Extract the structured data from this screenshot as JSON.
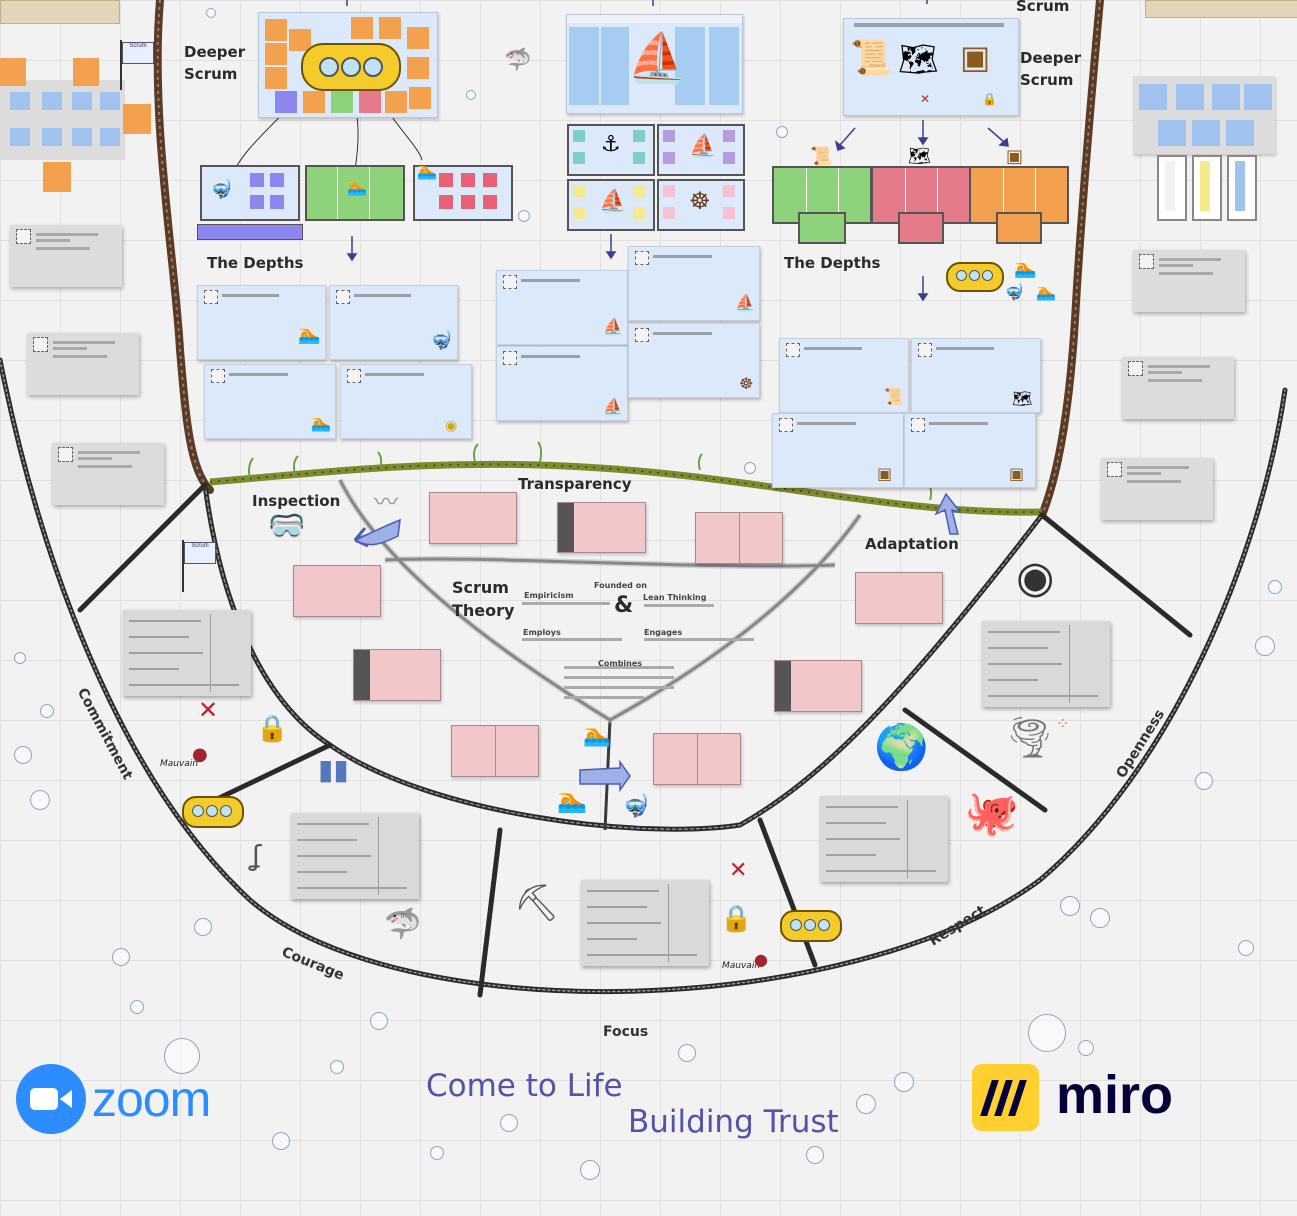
{
  "board": {
    "labels": {
      "deeper_scrum_left": "Deeper\nScrum",
      "deeper_scrum_right": "Deeper\nScrum",
      "scrum_top": "Scrum",
      "depths_left": "The Depths",
      "depths_right": "The Depths",
      "inspection": "Inspection",
      "transparency": "Transparency",
      "adaptation": "Adaptation",
      "scrum_theory": "Scrum\nTheory",
      "ampersand": "&",
      "founded_on": "Founded on",
      "empiricism": "Empiricism",
      "lean_thinking": "Lean Thinking",
      "employs": "Employs",
      "engages": "Engages",
      "combines": "Combines",
      "commitment": "Commitment",
      "courage": "Courage",
      "focus": "Focus",
      "respect": "Respect",
      "openness": "Openness",
      "signature": "Mauvain",
      "flag_text": "Scrum"
    },
    "colors": {
      "orange": "#f4a14f",
      "light_blue": "#9fc3ee",
      "green": "#8fd27c",
      "pink": "#e57a8b",
      "red_sticky": "#e95f73",
      "lilac": "#b79be0",
      "teal": "#7dd0c8",
      "yellow": "#f5e98e",
      "rope": "#2a2a2a",
      "trench_wall": "#5a3b2a",
      "seaweed": "#7e8a2e"
    },
    "icons": [
      "submarine-icon",
      "pirate-ship-icon",
      "treasure-map-icon",
      "treasure-chest-icon",
      "anchor-icon",
      "ship-wheel-icon",
      "diver-icon",
      "shark-icon",
      "octopus-icon",
      "globe-icon",
      "tornado-icon",
      "pickaxe-icon",
      "padlock-icon",
      "x-mark-icon",
      "flag-icon",
      "oxygen-tanks-icon",
      "wax-seal-icon",
      "arrow-icon"
    ]
  },
  "branding": {
    "zoom_label": "zoom",
    "miro_label": "miro",
    "tagline_1": "Come to Life",
    "tagline_2": "Building Trust",
    "zoom_color": "#2d8cff",
    "miro_yellow": "#ffd02f",
    "tagline_color": "#5552a8"
  }
}
